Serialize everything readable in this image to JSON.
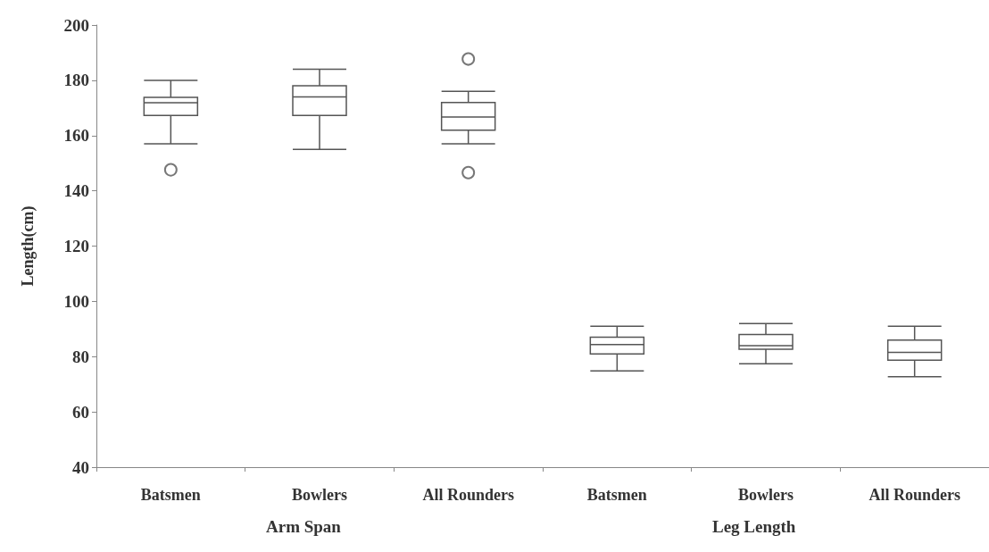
{
  "chart_data": {
    "type": "box",
    "ylabel": "Length(cm)",
    "categories": [
      "Batsmen",
      "Bowlers",
      "All Rounders",
      "Batsmen",
      "Bowlers",
      "All Rounders"
    ],
    "annotations": [
      "Arm Span",
      "Leg Length"
    ],
    "color": "#555555",
    "boxes": [
      {
        "low": 157,
        "q1": 167.3,
        "median": 171.9,
        "q3": 173.8,
        "high": 180,
        "outliers": [
          147.6
        ]
      },
      {
        "low": 155,
        "q1": 167.3,
        "median": 174,
        "q3": 178,
        "high": 184
      },
      {
        "low": 157,
        "q1": 161.9,
        "median": 166.7,
        "q3": 172,
        "high": 176,
        "outliers": [
          187.7,
          146.6
        ]
      },
      {
        "low": 74.8,
        "q1": 81,
        "median": 84.4,
        "q3": 87,
        "high": 91
      },
      {
        "low": 77.4,
        "q1": 82.7,
        "median": 84,
        "q3": 88,
        "high": 92
      },
      {
        "low": 72.7,
        "q1": 78.7,
        "median": 81.5,
        "q3": 86,
        "high": 91
      }
    ],
    "ylim": [
      40,
      200
    ],
    "yticks": [
      40,
      60,
      80,
      100,
      120,
      140,
      160,
      180,
      200
    ],
    "grid": false
  }
}
